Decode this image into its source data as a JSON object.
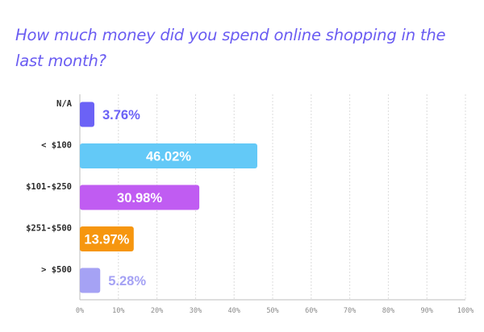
{
  "chart_data": {
    "type": "bar",
    "orientation": "horizontal",
    "title": "How much money did you spend online shopping in the last month?",
    "categories": [
      "N/A",
      "< $100",
      "$101-$250",
      "$251-$500",
      "> $500"
    ],
    "values": [
      3.76,
      46.02,
      30.98,
      13.97,
      5.28
    ],
    "value_labels": [
      "3.76%",
      "46.02%",
      "30.98%",
      "13.97%",
      "5.28%"
    ],
    "colors": [
      "#6b62f6",
      "#63c9f7",
      "#c05cf2",
      "#f6960f",
      "#a5a2f4"
    ],
    "value_label_colors": [
      "#6b62f6",
      "#ffffff",
      "#ffffff",
      "#ffffff",
      "#a5a2f4"
    ],
    "xlim": [
      0,
      100
    ],
    "x_ticks": [
      "0%",
      "10%",
      "20%",
      "30%",
      "40%",
      "50%",
      "60%",
      "70%",
      "80%",
      "90%",
      "100%"
    ],
    "grid": true,
    "xlabel": "",
    "ylabel": ""
  }
}
